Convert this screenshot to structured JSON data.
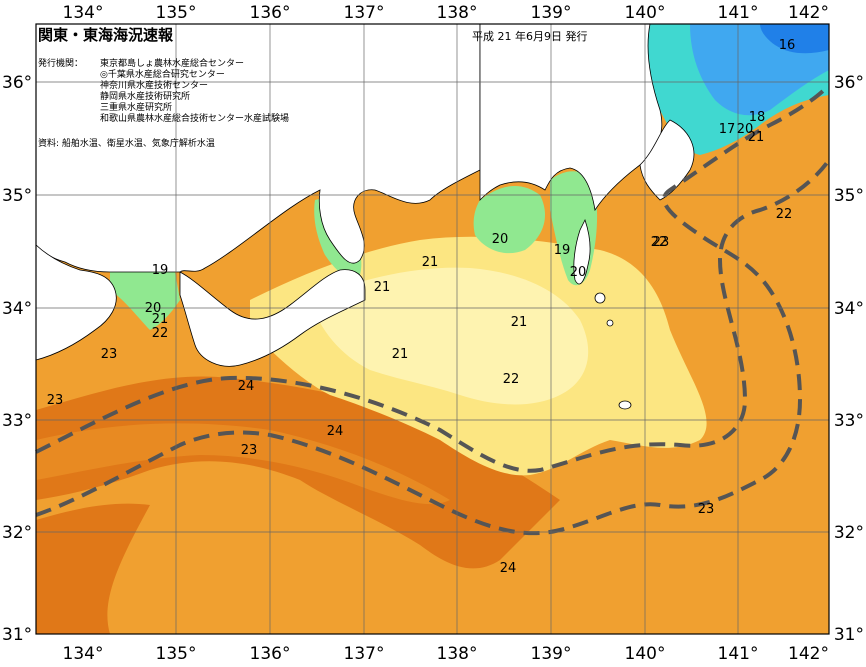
{
  "map": {
    "title": "関東・東海海況速報",
    "date": "平成 21 年6月9日 発行",
    "issuers_label": "発行機関：",
    "issuers": [
      "東京都島しょ農林水産総合センター",
      "◎千葉県水産総合研究センター",
      "神奈川県水産技術センター",
      "静岡県水産技術研究所",
      "三重県水産研究所",
      "和歌山県農林水産総合技術センター水産試験場"
    ],
    "sources": "資料: 船舶水温、衛星水温、気象庁解析水温",
    "lon_ticks_top": [
      "134°",
      "135°",
      "136°",
      "137°",
      "138°",
      "139°",
      "140°",
      "141°",
      "142°"
    ],
    "lon_ticks_bottom": [
      "134°",
      "135°",
      "136°",
      "137°",
      "138°",
      "139°",
      "140°",
      "141°",
      "142°"
    ],
    "lat_ticks_left": [
      "36°",
      "35°",
      "34°",
      "33°",
      "32°",
      "31°"
    ],
    "lat_ticks_right": [
      "36°",
      "35°",
      "34°",
      "33°",
      "32°",
      "31°"
    ],
    "temperature_labels": [
      "16",
      "18",
      "17",
      "20",
      "21",
      "22",
      "20",
      "19",
      "20",
      "21",
      "21",
      "19",
      "20",
      "21",
      "22",
      "23",
      "21",
      "21",
      "22",
      "24",
      "24",
      "23",
      "23",
      "23",
      "22",
      "23",
      "24"
    ]
  },
  "colors": {
    "warm_dark": "#e07818",
    "warm": "#f0a030",
    "warm_light": "#f8c050",
    "yellow": "#fce682",
    "yellow_pale": "#fef3b0",
    "green": "#90e890",
    "green_dark": "#50d070",
    "cyan": "#40d8d0",
    "blue": "#40a8f0",
    "blue_dark": "#2080e8",
    "land": "#ffffff",
    "kuroshio": "#555555"
  }
}
